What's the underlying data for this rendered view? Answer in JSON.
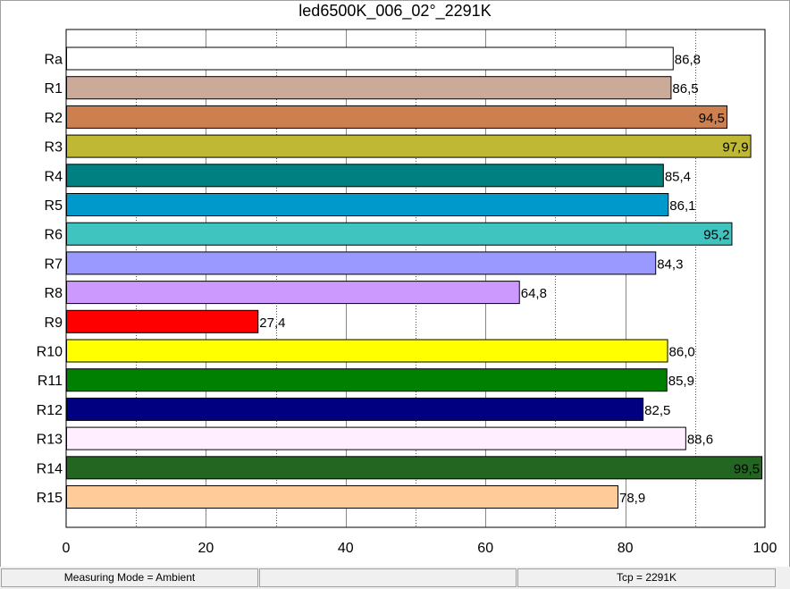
{
  "chart_data": {
    "type": "bar",
    "orientation": "horizontal",
    "title": "led6500K_006_02°_2291K",
    "xlabel": "",
    "ylabel": "",
    "xlim": [
      0,
      100
    ],
    "x_ticks": [
      "0",
      "20",
      "40",
      "60",
      "80",
      "100"
    ],
    "grid": true,
    "categories": [
      "Ra",
      "R1",
      "R2",
      "R3",
      "R4",
      "R5",
      "R6",
      "R7",
      "R8",
      "R9",
      "R10",
      "R11",
      "R12",
      "R13",
      "R14",
      "R15"
    ],
    "values": [
      86.8,
      86.5,
      94.5,
      97.9,
      85.4,
      86.1,
      95.2,
      84.3,
      64.8,
      27.4,
      86.0,
      85.9,
      82.5,
      88.6,
      99.5,
      78.9
    ],
    "value_labels": [
      "86,8",
      "86,5",
      "94,5",
      "97,9",
      "85,4",
      "86,1",
      "95,2",
      "84,3",
      "64,8",
      "27,4",
      "86,0",
      "85,9",
      "82,5",
      "88,6",
      "99,5",
      "78,9"
    ],
    "colors": [
      "#ffffff",
      "#ccaa99",
      "#cc8050",
      "#bfb835",
      "#008080",
      "#0099cc",
      "#40c4c0",
      "#9999ff",
      "#cc99ff",
      "#ff0000",
      "#ffff00",
      "#008000",
      "#000080",
      "#ffeeff",
      "#226622",
      "#ffcc99"
    ]
  },
  "statusbar": {
    "measuring_mode": "Measuring Mode = Ambient",
    "middle": "",
    "tcp": "Tcp = 2291K"
  }
}
